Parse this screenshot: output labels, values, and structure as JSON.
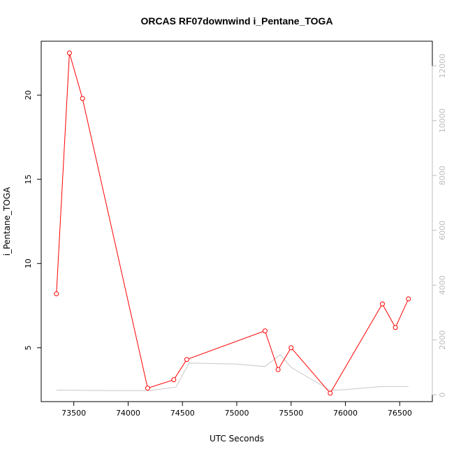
{
  "chart_data": {
    "type": "line",
    "title": "ORCAS RF07downwind i_Pentane_TOGA",
    "xlabel": "UTC Seconds",
    "ylabel": "i_Pentane_TOGA",
    "xlim": [
      73200,
      76800
    ],
    "ylim": [
      1.8,
      23.2
    ],
    "y2lim": [
      -250,
      12900
    ],
    "x_ticks": [
      73500,
      74000,
      74500,
      75000,
      75500,
      76000,
      76500
    ],
    "y_ticks": [
      5,
      10,
      15,
      20
    ],
    "y2_ticks": [
      0,
      2000,
      4000,
      6000,
      8000,
      10000,
      12000
    ],
    "colors": {
      "primary": "#ff0000",
      "secondary": "#c8c8c8",
      "right_axis": "#bdbdbd"
    },
    "series": [
      {
        "color": "#ff0000",
        "axis": "left",
        "markers": "open-circle",
        "x": [
          73340,
          73460,
          73580,
          74180,
          74420,
          74540,
          75260,
          75380,
          75500,
          75860,
          76340,
          76460,
          76580
        ],
        "y": [
          8.2,
          22.5,
          19.8,
          2.6,
          3.1,
          4.3,
          6.0,
          3.7,
          5.0,
          2.3,
          7.6,
          6.2,
          7.9
        ]
      },
      {
        "color": "#c8c8c8",
        "axis": "right",
        "markers": "none",
        "x": [
          73340,
          73600,
          73900,
          74200,
          74440,
          74560,
          75000,
          75260,
          75400,
          75500,
          75860,
          76000,
          76340,
          76580
        ],
        "y": [
          170,
          160,
          150,
          150,
          280,
          1160,
          1120,
          1030,
          1460,
          1000,
          160,
          190,
          300,
          300
        ]
      }
    ]
  }
}
